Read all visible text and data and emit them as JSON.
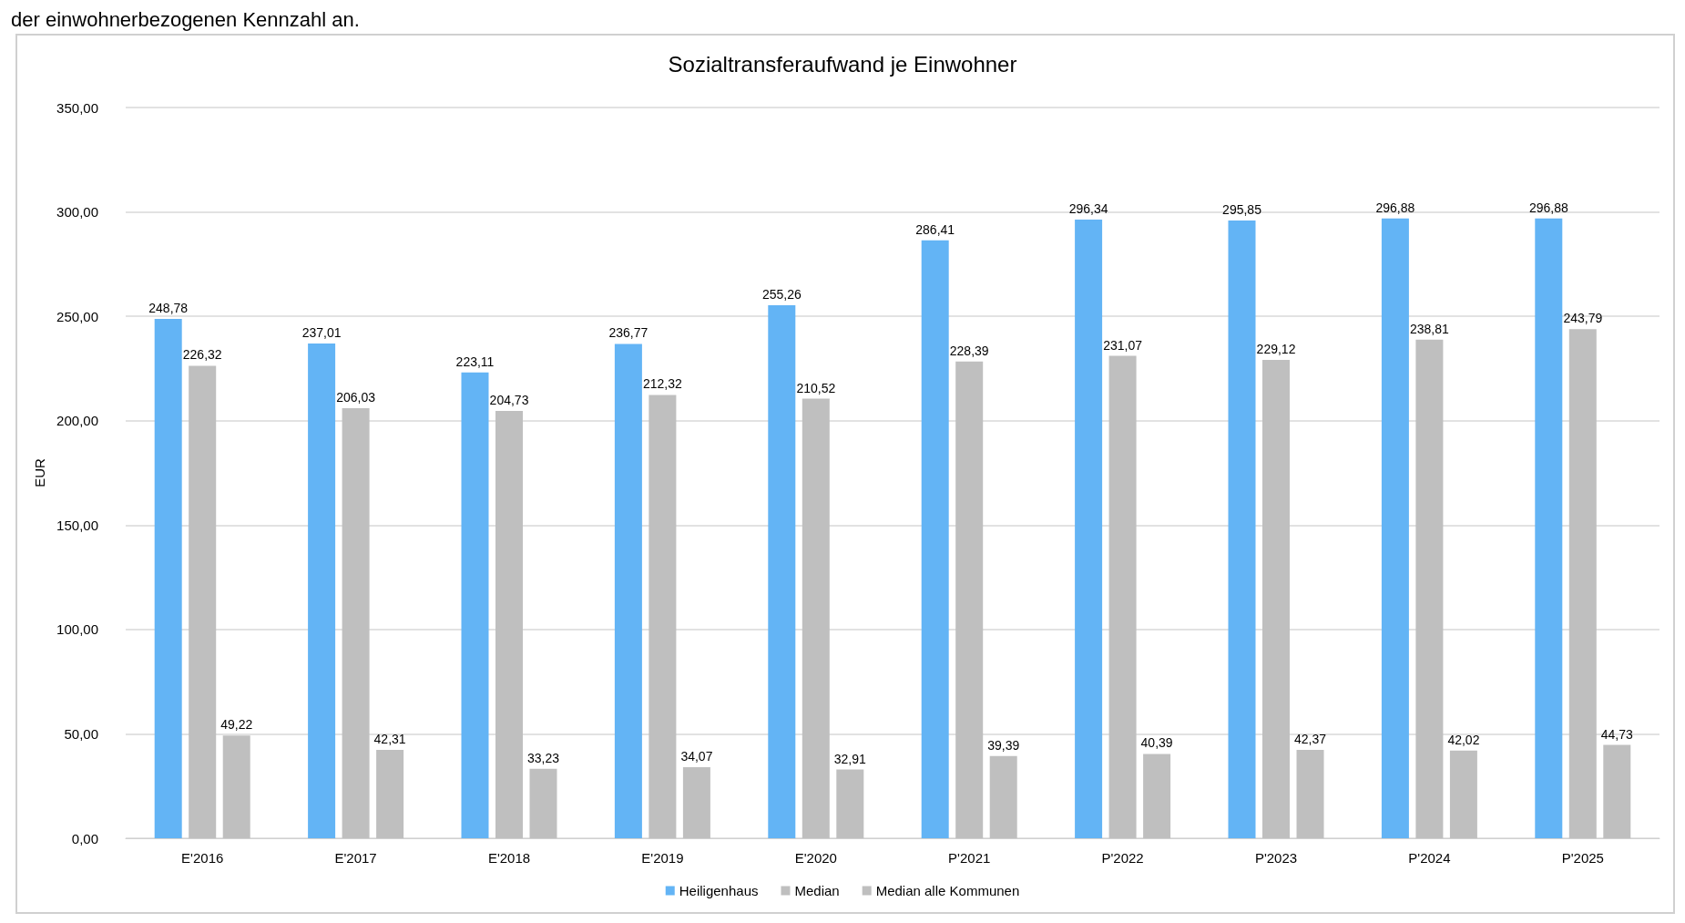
{
  "chart_data": {
    "type": "bar",
    "title": "Sozialtransferaufwand je Einwohner",
    "ylabel": "EUR",
    "annotations": [
      "der einwohnerbezogenen Kennzahl an."
    ],
    "categories": [
      "E'2016",
      "E'2017",
      "E'2018",
      "E'2019",
      "E'2020",
      "P'2021",
      "P'2022",
      "P'2023",
      "P'2024",
      "P'2025"
    ],
    "series": [
      {
        "name": "Heiligenhaus",
        "color": "#63b4f5",
        "values": [
          248.78,
          237.01,
          223.11,
          236.77,
          255.26,
          286.41,
          296.34,
          295.85,
          296.88,
          296.88
        ],
        "value_labels": [
          "248,78",
          "237,01",
          "223,11",
          "236,77",
          "255,26",
          "286,41",
          "296,34",
          "295,85",
          "296,88",
          "296,88"
        ]
      },
      {
        "name": "Median",
        "color": "#bfbfbf",
        "values": [
          226.32,
          206.03,
          204.73,
          212.32,
          210.52,
          228.39,
          231.07,
          229.12,
          238.81,
          243.79
        ],
        "value_labels": [
          "226,32",
          "206,03",
          "204,73",
          "212,32",
          "210,52",
          "228,39",
          "231,07",
          "229,12",
          "238,81",
          "243,79"
        ]
      },
      {
        "name": "Median alle Kommunen",
        "color": "#bfbfbf",
        "values": [
          49.22,
          42.31,
          33.23,
          34.07,
          32.91,
          39.39,
          40.39,
          42.37,
          42.02,
          44.73
        ],
        "value_labels": [
          "49,22",
          "42,31",
          "33,23",
          "34,07",
          "32,91",
          "39,39",
          "40,39",
          "42,37",
          "42,02",
          "44,73"
        ]
      }
    ],
    "ylim": [
      0,
      350
    ],
    "yticks": [
      {
        "value": 0,
        "label": "0,00"
      },
      {
        "value": 50,
        "label": "50,00"
      },
      {
        "value": 100,
        "label": "100,00"
      },
      {
        "value": 150,
        "label": "150,00"
      },
      {
        "value": 200,
        "label": "200,00"
      },
      {
        "value": 250,
        "label": "250,00"
      },
      {
        "value": 300,
        "label": "300,00"
      },
      {
        "value": 350,
        "label": "350,00"
      }
    ],
    "grid": "y",
    "legend": "bottom"
  }
}
